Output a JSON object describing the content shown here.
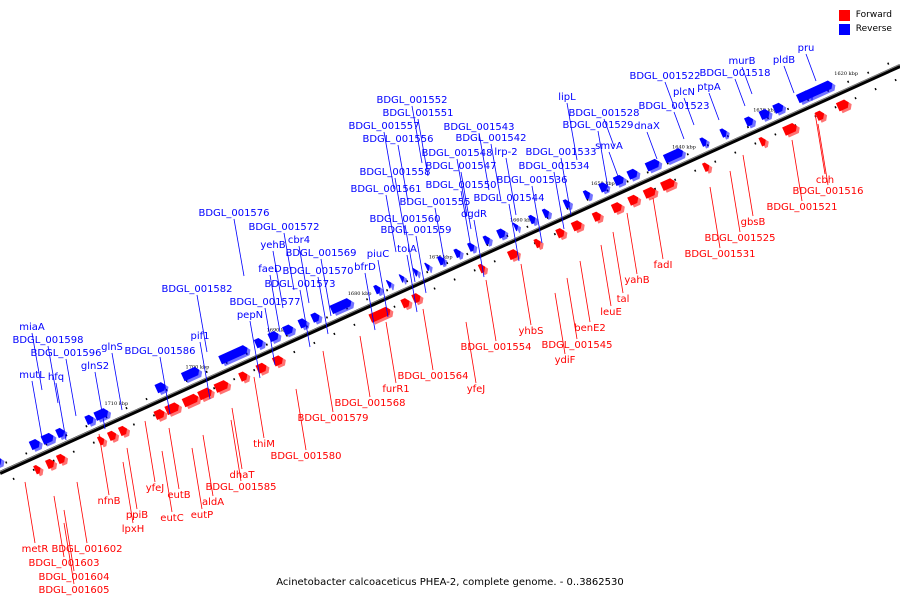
{
  "legend": {
    "forward": "Forward",
    "reverse": "Reverse"
  },
  "colors": {
    "forward": "#ff0000",
    "reverse": "#0000ff",
    "axis": "#000000"
  },
  "caption": "Acinetobacter calcoaceticus PHEA-2, complete genome. - 0..3862530",
  "ticks": [
    "1620 kbp",
    "1630 kbp",
    "1640 kbp",
    "1650 kbp",
    "1660 kbp",
    "1670 kbp",
    "1680 kbp",
    "1690 kbp",
    "1700 kbp",
    "1710 kbp"
  ],
  "reverse_genes": [
    "pru",
    "pldB",
    "murB",
    "BDGL_001518",
    "BDGL_001522",
    "ptpA",
    "plcN",
    "BDGL_001523",
    "lipL",
    "BDGL_001528",
    "BDGL_001529",
    "dnaX",
    "smvA",
    "BDGL_001533",
    "BDGL_001534",
    "BDGL_001536",
    "BDGL_001542",
    "lrp-2",
    "BDGL_001543",
    "BDGL_001544",
    "dgdR",
    "BDGL_001547",
    "BDGL_001548",
    "BDGL_001550",
    "BDGL_001551",
    "BDGL_001552",
    "BDGL_001555",
    "BDGL_001556",
    "BDGL_001557",
    "BDGL_001558",
    "BDGL_001559",
    "BDGL_001560",
    "BDGL_001561",
    "tolA",
    "piuC",
    "bfrD",
    "BDGL_001569",
    "BDGL_001570",
    "BDGL_001572",
    "BDGL_001573",
    "BDGL_001576",
    "BDGL_001577",
    "cbr4",
    "faeD",
    "yehB",
    "pepN",
    "pif1",
    "BDGL_001582",
    "BDGL_001586",
    "glnS2",
    "glnS",
    "BDGL_001596",
    "BDGL_001598",
    "hfq",
    "miaA",
    "mutL"
  ],
  "forward_genes": [
    "cbh",
    "BDGL_001516",
    "BDGL_001521",
    "gbsB",
    "BDGL_001525",
    "BDGL_001531",
    "fadI",
    "yahB",
    "tal",
    "leuE",
    "benE2",
    "BDGL_001545",
    "ydiF",
    "yhbS",
    "BDGL_001554",
    "yfeJ",
    "BDGL_001564",
    "furR1",
    "BDGL_001568",
    "BDGL_001579",
    "BDGL_001580",
    "thiM",
    "BDGL_001585",
    "dhaT",
    "aldA",
    "eutP",
    "eutC",
    "eutB",
    "yfeJ",
    "lpxH",
    "ppiB",
    "nfnB",
    "metR",
    "BDGL_001602",
    "BDGL_001603",
    "BDGL_001604",
    "BDGL_001605"
  ]
}
